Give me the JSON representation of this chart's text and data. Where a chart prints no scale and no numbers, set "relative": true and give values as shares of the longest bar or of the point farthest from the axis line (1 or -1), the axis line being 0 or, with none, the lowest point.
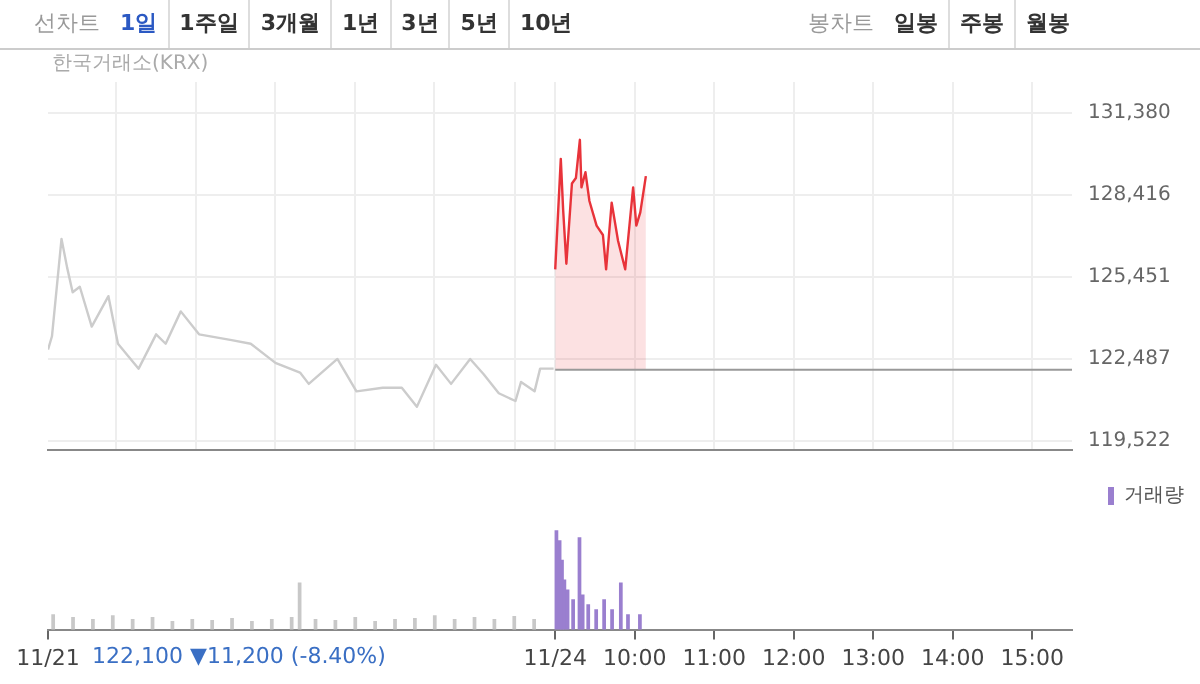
{
  "chart_data": [
    {
      "type": "other",
      "annotations": [
        "선차트",
        "1일",
        "1주일",
        "3개월",
        "1년",
        "3년",
        "5년",
        "10년",
        "봉차트",
        "일봉",
        "주봉",
        "월봉"
      ]
    },
    {
      "type": "line",
      "annotations": [
        "한국거래소(KRX)"
      ],
      "xlim": [
        2.62,
        15.5
      ],
      "ylim": [
        119200,
        132500
      ],
      "xticks": [
        {
          "value": 3.48,
          "label": null
        },
        {
          "value": 4.48,
          "label": null
        },
        {
          "value": 5.48,
          "label": null
        },
        {
          "value": 6.48,
          "label": null
        },
        {
          "value": 7.48,
          "label": null
        },
        {
          "value": 8.5,
          "label": null
        },
        {
          "value": 9,
          "label": null
        },
        {
          "value": 10,
          "label": null
        },
        {
          "value": 11,
          "label": null
        },
        {
          "value": 12,
          "label": null
        },
        {
          "value": 13,
          "label": null
        },
        {
          "value": 14,
          "label": null
        },
        {
          "value": 15,
          "label": null
        }
      ],
      "yticks": [
        {
          "value": 119522,
          "label": "119,522"
        },
        {
          "value": 122487,
          "label": "122,487"
        },
        {
          "value": 125451,
          "label": "125,451"
        },
        {
          "value": 128416,
          "label": "128,416"
        },
        {
          "value": 131380,
          "label": "131,380"
        }
      ],
      "tick_labels": "y",
      "grid": true,
      "legend": false,
      "ref_lines": [
        {
          "axis": "y",
          "value": 122100,
          "color": "#999999"
        }
      ],
      "series": [
        {
          "type": "line",
          "color": "#cccccc",
          "x": [
            2.62,
            2.67,
            2.79,
            2.86,
            2.93,
            3.02,
            3.17,
            3.38,
            3.5,
            3.76,
            3.98,
            4.1,
            4.29,
            4.52,
            4.93,
            5.17,
            5.48,
            5.79,
            5.9,
            6.26,
            6.5,
            6.83,
            7.07,
            7.26,
            7.5,
            7.69,
            7.93,
            8.1,
            8.29,
            8.5,
            8.57,
            8.74,
            8.81,
            8.98
          ],
          "values": [
            122830,
            123310,
            126830,
            125800,
            124900,
            125100,
            123660,
            124760,
            123040,
            122140,
            123380,
            123040,
            124210,
            123380,
            123170,
            123040,
            122350,
            122000,
            121590,
            122490,
            121320,
            121450,
            121450,
            120760,
            122280,
            121590,
            122490,
            121940,
            121250,
            120970,
            121660,
            121320,
            122140,
            122140
          ]
        },
        {
          "type": "area",
          "color": "#e8333a",
          "x": [
            9.0,
            9.07,
            9.1,
            9.14,
            9.21,
            9.26,
            9.31,
            9.33,
            9.38,
            9.43,
            9.52,
            9.6,
            9.64,
            9.71,
            9.79,
            9.88,
            9.98,
            10.02,
            10.07,
            10.14
          ],
          "values": [
            125730,
            129720,
            127860,
            125930,
            128830,
            129030,
            130410,
            128690,
            129240,
            128200,
            127310,
            126970,
            125730,
            128140,
            126760,
            125730,
            128690,
            127310,
            127790,
            129100
          ]
        }
      ]
    },
    {
      "type": "bar",
      "relative": true,
      "xlim": [
        2.62,
        15.5
      ],
      "tick_labels": "x",
      "grid": false,
      "legend": "top right",
      "xticks": [
        {
          "value": 2.62,
          "label": "11/21"
        },
        {
          "value": 9,
          "label": "11/24"
        },
        {
          "value": 10,
          "label": "10:00"
        },
        {
          "value": 11,
          "label": "11:00"
        },
        {
          "value": 12,
          "label": "12:00"
        },
        {
          "value": 13,
          "label": "13:00"
        },
        {
          "value": 14,
          "label": "14:00"
        },
        {
          "value": 15,
          "label": "15:00"
        }
      ],
      "annotations": [
        "122,100 ▼11,200 (-8.40%)"
      ],
      "series": [
        {
          "color": "#c8c8c8",
          "x": [
            2.7,
            2.95,
            3.2,
            3.45,
            3.7,
            3.95,
            4.2,
            4.45,
            4.7,
            4.95,
            5.2,
            5.45,
            5.7,
            5.8,
            6.0,
            6.25,
            6.5,
            6.75,
            7.0,
            7.25,
            7.5,
            7.75,
            8.0,
            8.25,
            8.5,
            8.75
          ],
          "values": [
            0.15,
            0.12,
            0.1,
            0.14,
            0.1,
            0.12,
            0.08,
            0.1,
            0.09,
            0.11,
            0.08,
            0.1,
            0.12,
            0.47,
            0.1,
            0.09,
            0.12,
            0.08,
            0.1,
            0.11,
            0.14,
            0.1,
            0.12,
            0.1,
            0.13,
            0.1
          ]
        },
        {
          "name": "거래량",
          "color": "#9a7fcf",
          "x": [
            9.0,
            9.04,
            9.07,
            9.1,
            9.14,
            9.21,
            9.29,
            9.33,
            9.4,
            9.5,
            9.6,
            9.7,
            9.81,
            9.9,
            10.05
          ],
          "values": [
            1,
            0.9,
            0.7,
            0.5,
            0.4,
            0.3,
            0.93,
            0.35,
            0.25,
            0.2,
            0.3,
            0.2,
            0.47,
            0.15,
            0.15
          ]
        }
      ]
    }
  ]
}
